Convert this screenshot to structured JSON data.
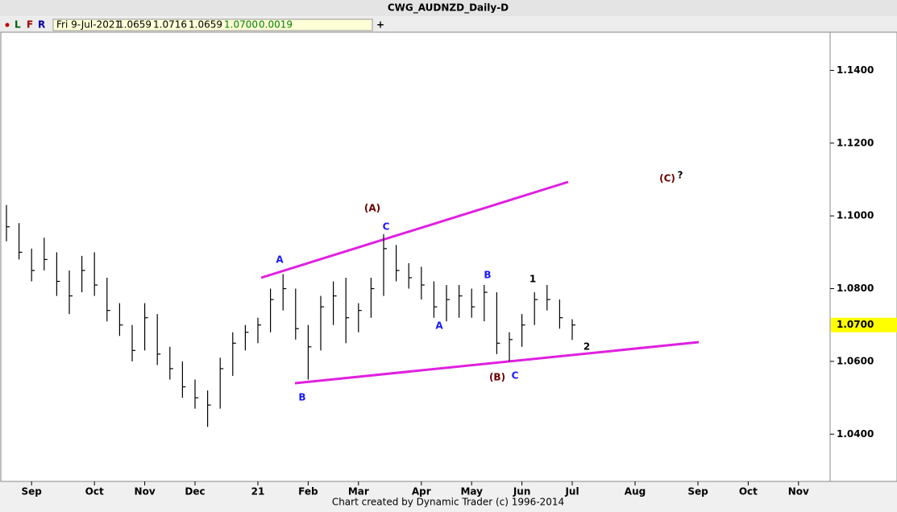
{
  "header": {
    "title": "CWG_AUDNZD_Daily-D",
    "tools": [
      "L",
      "F",
      "R"
    ],
    "plus": "+",
    "info": [
      "Fri 9-Jul-2021",
      "1.0659",
      "1.0716",
      "1.0659",
      "1.0700",
      "0.0019"
    ],
    "footer": "Chart created by Dynamic Trader  (c)  1996-2014"
  },
  "chart_data": {
    "type": "ohlc",
    "color": "#000000",
    "categories": [
      null,
      null,
      "Sep",
      null,
      null,
      null,
      null,
      "Oct",
      null,
      null,
      null,
      "Nov",
      null,
      null,
      null,
      "Dec",
      null,
      null,
      null,
      null,
      "21",
      null,
      null,
      null,
      "Feb",
      null,
      null,
      null,
      "Mar",
      null,
      null,
      null,
      null,
      "Apr",
      null,
      null,
      null,
      "May",
      null,
      null,
      null,
      "Jun",
      null,
      null,
      null,
      "Jul",
      null,
      null,
      null,
      null,
      "Aug",
      null,
      null,
      null,
      null,
      "Sep",
      null,
      null,
      null,
      "Oct",
      null,
      null,
      null,
      "Nov",
      null,
      null
    ],
    "high": [
      1.103,
      1.098,
      1.091,
      1.094,
      1.09,
      1.085,
      1.089,
      1.09,
      1.083,
      1.076,
      1.07,
      1.076,
      1.073,
      1.064,
      1.06,
      1.055,
      1.052,
      1.061,
      1.068,
      1.07,
      1.072,
      1.08,
      1.084,
      1.08,
      1.07,
      1.078,
      1.082,
      1.083,
      1.076,
      1.083,
      1.095,
      1.092,
      1.087,
      1.086,
      1.082,
      1.081,
      1.081,
      1.08,
      1.081,
      1.079,
      1.068,
      1.073,
      1.079,
      1.081,
      1.077,
      1.0716,
      null,
      null,
      null,
      null,
      null,
      null,
      null,
      null,
      null,
      null,
      null,
      null,
      null,
      null,
      null,
      null,
      null,
      null,
      null,
      null
    ],
    "low": [
      1.093,
      1.088,
      1.082,
      1.085,
      1.078,
      1.073,
      1.079,
      1.078,
      1.071,
      1.067,
      1.06,
      1.063,
      1.059,
      1.055,
      1.05,
      1.047,
      1.042,
      1.047,
      1.056,
      1.063,
      1.065,
      1.068,
      1.074,
      1.066,
      1.055,
      1.063,
      1.07,
      1.065,
      1.068,
      1.072,
      1.078,
      1.082,
      1.08,
      1.077,
      1.072,
      1.071,
      1.072,
      1.072,
      1.071,
      1.062,
      1.06,
      1.064,
      1.07,
      1.074,
      1.069,
      1.0659,
      null,
      null,
      null,
      null,
      null,
      null,
      null,
      null,
      null,
      null,
      null,
      null,
      null,
      null,
      null,
      null,
      null,
      null,
      null,
      null
    ],
    "close": [
      1.097,
      1.09,
      1.085,
      1.088,
      1.082,
      1.078,
      1.085,
      1.081,
      1.074,
      1.07,
      1.063,
      1.072,
      1.062,
      1.058,
      1.053,
      1.05,
      1.048,
      1.058,
      1.065,
      1.068,
      1.07,
      1.077,
      1.08,
      1.069,
      1.064,
      1.075,
      1.078,
      1.072,
      1.074,
      1.08,
      1.091,
      1.085,
      1.083,
      1.081,
      1.075,
      1.077,
      1.078,
      1.075,
      1.079,
      1.065,
      1.066,
      1.07,
      1.077,
      1.077,
      1.072,
      1.07,
      null,
      null,
      null,
      null,
      null,
      null,
      null,
      null,
      null,
      null,
      null,
      null,
      null,
      null,
      null,
      null,
      null,
      null,
      null,
      null
    ],
    "ylim": [
      1.027,
      1.1505
    ],
    "yticks": [
      {
        "value": 1.04,
        "label": "1.0400"
      },
      {
        "value": 1.06,
        "label": "1.0600"
      },
      {
        "value": 1.08,
        "label": "1.0800"
      },
      {
        "value": 1.1,
        "label": "1.1000"
      },
      {
        "value": 1.12,
        "label": "1.1200"
      },
      {
        "value": 1.14,
        "label": "1.1400"
      }
    ],
    "last_price": 1.07,
    "last_price_label": "1.0700",
    "last_price_color": "#ffff00",
    "annotations": [
      {
        "text": "(A)",
        "color": "#6b0000"
      },
      {
        "text": "A",
        "color": "#1a1aff"
      },
      {
        "text": "C",
        "color": "#1a1aff"
      },
      {
        "text": "B",
        "color": "#1a1aff"
      },
      {
        "text": "A",
        "color": "#1a1aff"
      },
      {
        "text": "1",
        "color": "#000000"
      },
      {
        "text": "(B)",
        "color": "#6b0000"
      },
      {
        "text": "C",
        "color": "#1a1aff"
      },
      {
        "text": "2",
        "color": "#000000"
      },
      {
        "text": "B",
        "color": "#1a1aff"
      },
      {
        "text": "(C)",
        "color": "#6b0000"
      },
      {
        "text": "?",
        "color": "#000000"
      }
    ]
  }
}
